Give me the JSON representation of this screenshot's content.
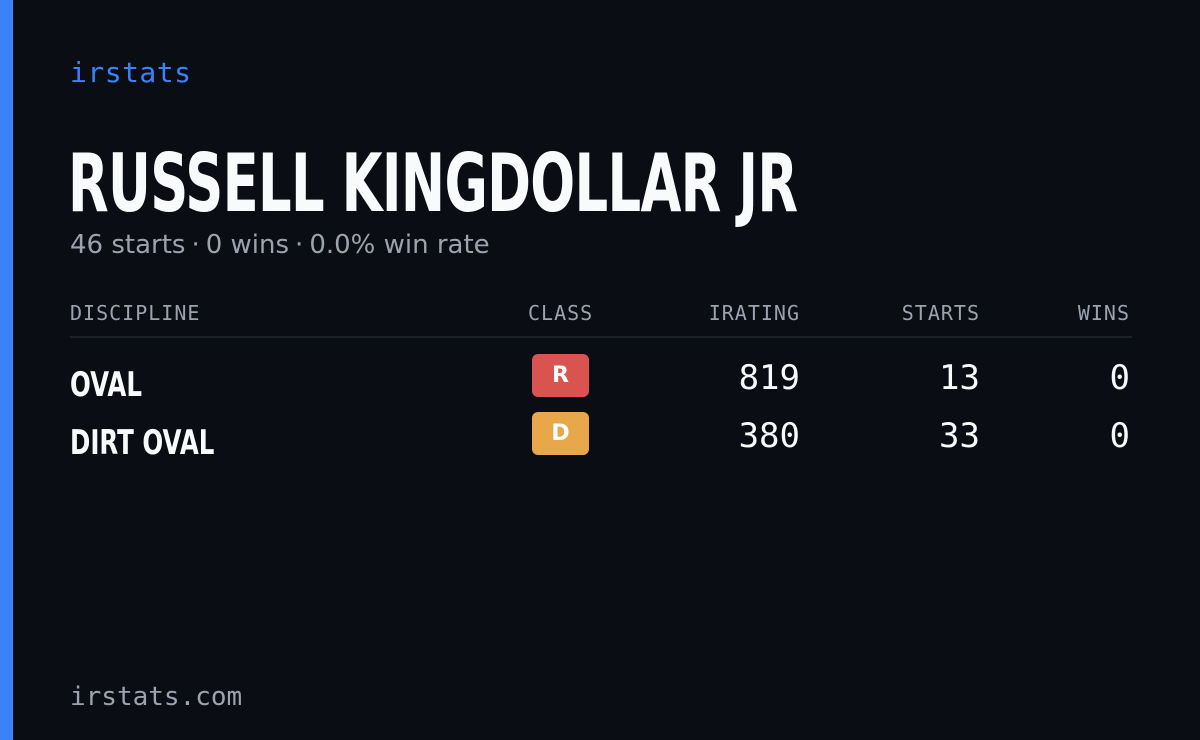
{
  "brand": "irstats",
  "driver": {
    "name": "RUSSELL KINGDOLLAR JR",
    "starts_text": "46 starts",
    "wins_text": "0 wins",
    "win_rate_text": "0.0% win rate",
    "separator": "·"
  },
  "table": {
    "headers": {
      "discipline": "DISCIPLINE",
      "class": "CLASS",
      "irating": "IRATING",
      "starts": "STARTS",
      "wins": "WINS"
    },
    "rows": [
      {
        "discipline": "OVAL",
        "class": "R",
        "class_color": "#d9534f",
        "irating": "819",
        "starts": "13",
        "wins": "0"
      },
      {
        "discipline": "DIRT OVAL",
        "class": "D",
        "class_color": "#e8a74a",
        "irating": "380",
        "starts": "33",
        "wins": "0"
      }
    ]
  },
  "footer": "irstats.com",
  "colors": {
    "background": "#0a0d14",
    "accent": "#3b82f6",
    "muted_text": "#9ca3af"
  }
}
